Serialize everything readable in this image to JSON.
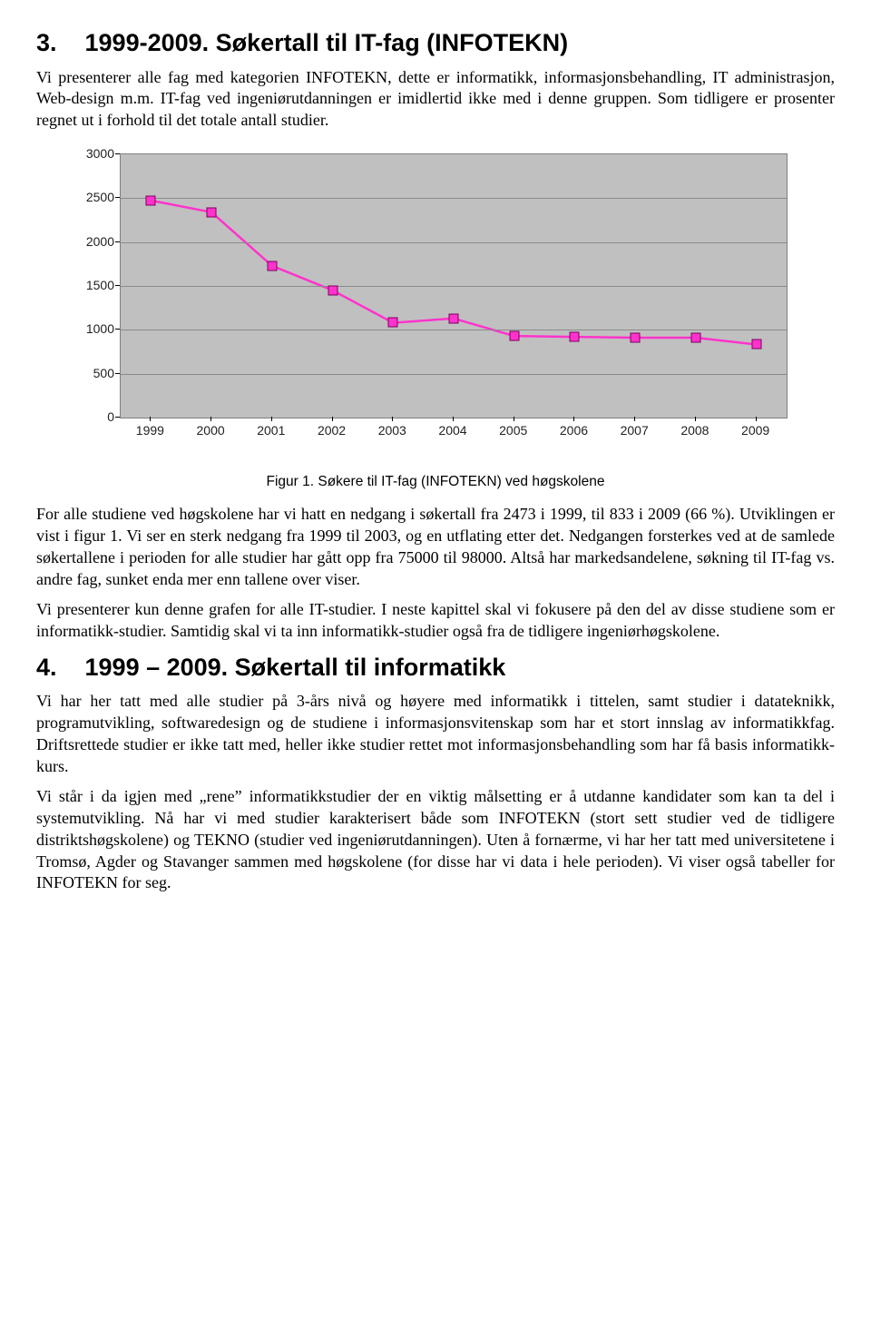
{
  "section3": {
    "num": "3.",
    "title": "1999-2009. Søkertall til IT-fag (INFOTEKN)",
    "p1": "Vi presenterer alle fag med kategorien INFOTEKN, dette er informatikk, informasjonsbehandling, IT administrasjon, Web-design m.m. IT-fag ved ingeniørutdanningen er imidlertid ikke med i denne gruppen. Som tidligere er prosenter regnet ut i forhold til det totale antall studier."
  },
  "chart": {
    "type": "line",
    "background_color": "#c0c0c0",
    "grid_color": "#8a8a8a",
    "line_color": "#ff33cc",
    "marker_fill": "#ff33cc",
    "marker_border": "#7a0060",
    "line_width": 2.5,
    "marker_size": 9,
    "ylim": [
      0,
      3000
    ],
    "ytick_step": 500,
    "yticks": [
      0,
      500,
      1000,
      1500,
      2000,
      2500,
      3000
    ],
    "xlabels": [
      "1999",
      "2000",
      "2001",
      "2002",
      "2003",
      "2004",
      "2005",
      "2006",
      "2007",
      "2008",
      "2009"
    ],
    "values": [
      2473,
      2340,
      1730,
      1450,
      1080,
      1130,
      930,
      920,
      910,
      910,
      833
    ],
    "tick_fontsize": 14,
    "tick_fontfamily": "Arial"
  },
  "caption1": "Figur 1. Søkere til IT-fag (INFOTEKN) ved høgskolene",
  "body_after_chart": {
    "p1": "For alle studiene ved høgskolene har vi hatt en nedgang i søkertall fra 2473 i 1999, til 833 i 2009 (66 %). Utviklingen er vist i figur 1. Vi ser en sterk nedgang fra 1999 til 2003, og en utflating etter det. Nedgangen forsterkes ved at de samlede søkertallene i perioden for alle studier har gått opp fra 75000 til 98000. Altså har markedsandelene, søkning til IT-fag vs. andre fag, sunket enda mer enn tallene over viser.",
    "p2": "Vi presenterer kun denne grafen for alle IT-studier. I neste kapittel skal vi fokusere på den del av disse studiene som er informatikk-studier. Samtidig skal vi ta inn informatikk-studier også fra de tidligere ingeniørhøgskolene."
  },
  "section4": {
    "num": "4.",
    "title": "1999 – 2009. Søkertall til informatikk",
    "p1": "Vi har her tatt med alle studier på 3-års nivå og høyere med informatikk i tittelen, samt studier i datateknikk, programutvikling, softwaredesign og de studiene i informasjons­vitenskap som har et stort innslag av informatikkfag. Driftsrettede studier er ikke tatt med, heller ikke studier rettet mot informasjonsbehandling som har få basis informatikk-kurs.",
    "p2": "Vi står i da igjen med „rene” informatikkstudier der en viktig målsetting er å utdanne kandidater som kan ta del i systemutvikling. Nå har vi med studier karakterisert både som INFOTEKN (stort sett studier ved de tidligere distriktshøgskolene) og TEKNO (studier ved ingeniørutdanningen). Uten å fornærme, vi har her tatt med universitetene i Tromsø, Agder og Stavanger sammen med høgskolene (for disse har vi data i hele perioden). Vi viser også tabeller for INFOTEKN for seg."
  }
}
